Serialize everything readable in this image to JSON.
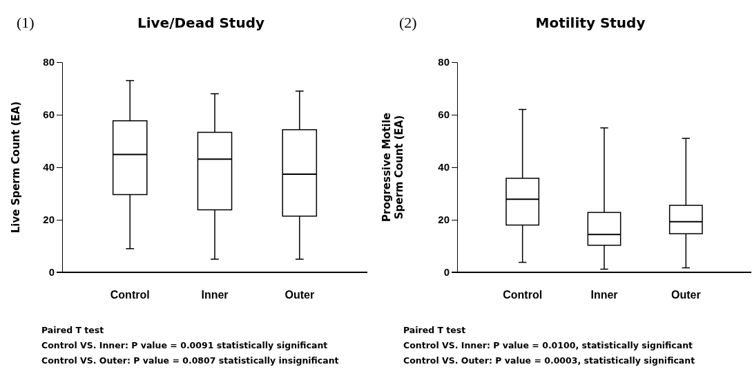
{
  "chart_data": [
    {
      "type": "box",
      "title": "Live/Dead Study",
      "ylabel": "Live Sperm Count (EA)",
      "categories": [
        "Control",
        "Inner",
        "Outer"
      ],
      "ylim": [
        0,
        80
      ],
      "yticks": [
        0,
        20,
        40,
        60,
        80
      ],
      "grid": false,
      "boxes": [
        {
          "low": 9,
          "q1": 29.6,
          "median": 44.9,
          "q3": 57.7,
          "high": 73
        },
        {
          "low": 5,
          "q1": 23.8,
          "median": 43.1,
          "q3": 53.3,
          "high": 68
        },
        {
          "low": 5,
          "q1": 21.4,
          "median": 37.4,
          "q3": 54.3,
          "high": 69
        }
      ],
      "annotations": [
        "(1)",
        "Paired T test",
        "Control VS. Inner: P value = 0.0091 statistically significant",
        "Control VS. Outer: P value = 0.0807 statistically insignificant"
      ]
    },
    {
      "type": "box",
      "title": "Motility Study",
      "ylabel": "Progressive Motile\nSperm Count (EA)",
      "categories": [
        "Control",
        "Inner",
        "Outer"
      ],
      "ylim": [
        0,
        80
      ],
      "yticks": [
        0,
        20,
        40,
        60,
        80
      ],
      "grid": false,
      "boxes": [
        {
          "low": 3.8,
          "q1": 18,
          "median": 27.8,
          "q3": 35.8,
          "high": 62
        },
        {
          "low": 1.2,
          "q1": 10.3,
          "median": 14.4,
          "q3": 22.8,
          "high": 55
        },
        {
          "low": 1.7,
          "q1": 14.7,
          "median": 19.3,
          "q3": 25.5,
          "high": 51
        }
      ],
      "annotations": [
        "(2)",
        "Paired T test",
        "Control VS. Inner: P value = 0.0100, statistically significant",
        "Control VS. Outer: P value = 0.0003, statistically significant"
      ]
    }
  ]
}
